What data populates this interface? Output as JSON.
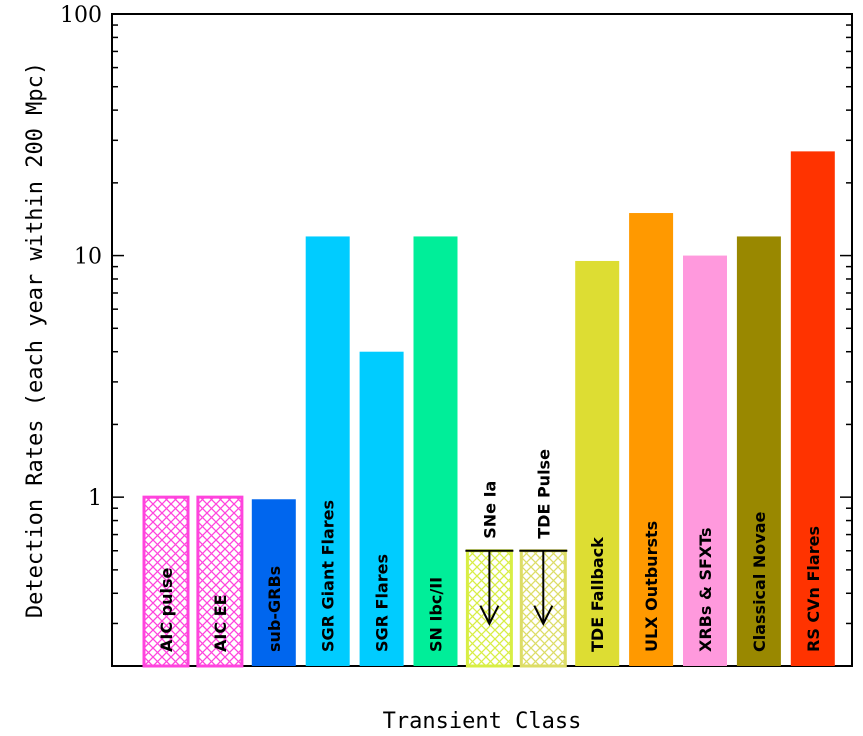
{
  "chart_data": {
    "type": "bar",
    "title": "",
    "xlabel": "Transient Class",
    "ylabel": "Detection Rates (each year within 200 Mpc)",
    "yscale": "log",
    "ylim": [
      0.2,
      100
    ],
    "yticks": [
      1,
      10,
      100
    ],
    "ytick_labels": [
      "1",
      "10",
      "100"
    ],
    "grid": false,
    "categories": [
      "AIC pulse",
      "AIC EE",
      "sub-GRBs",
      "SGR Giant Flares",
      "SGR Flares",
      "SN Ibc/II",
      "SNe Ia",
      "TDE Pulse",
      "TDE Fallback",
      "ULX Outbursts",
      "XRBs & SFXTs",
      "Classical Novae",
      "RS CVn Flares"
    ],
    "values": [
      1.0,
      1.0,
      0.98,
      12,
      4,
      12,
      0.6,
      0.6,
      9.5,
      15,
      10,
      12,
      27
    ],
    "upper_limit": [
      false,
      false,
      false,
      false,
      false,
      false,
      true,
      true,
      false,
      false,
      false,
      false,
      false
    ],
    "hatched": [
      true,
      true,
      false,
      false,
      false,
      false,
      true,
      true,
      false,
      false,
      false,
      false,
      false
    ],
    "colors": [
      "#ff44dd",
      "#ff44dd",
      "#0066ee",
      "#00ccff",
      "#00ccff",
      "#00ee99",
      "#d8ee44",
      "#dddd66",
      "#dddd33",
      "#ff9900",
      "#ff99dd",
      "#998800",
      "#ff3300"
    ]
  }
}
